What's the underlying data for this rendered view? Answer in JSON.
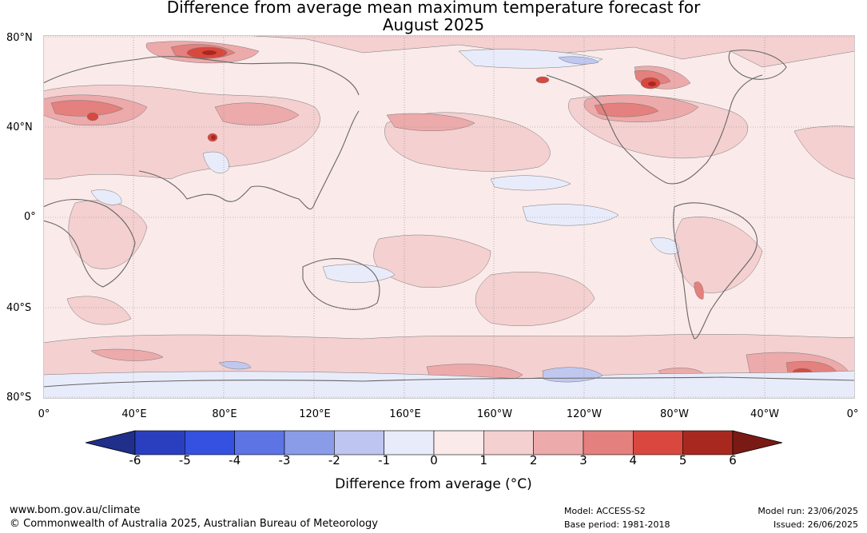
{
  "title": {
    "line1": "Difference from average mean maximum temperature forecast for",
    "line2": "August 2025"
  },
  "map": {
    "lat_labels": [
      "80°N",
      "40°N",
      "0°",
      "40°S",
      "80°S"
    ],
    "lon_labels": [
      "0°",
      "40°E",
      "80°E",
      "120°E",
      "160°E",
      "160°W",
      "120°W",
      "80°W",
      "40°W",
      "0°"
    ],
    "colors": {
      "ocean_base": "#fbeaea",
      "anomaly_0_1": "#fbeaea",
      "anomaly_1_2": "#f4d0d0",
      "anomaly_2_3": "#edaaaa",
      "anomaly_3_4": "#e4807d",
      "anomaly_4_5": "#d9483f",
      "anomaly_5_6": "#a8281f",
      "anomaly_neg1_0": "#e8ecfa",
      "anomaly_neg2_neg1": "#c0c8f0",
      "coastline": "#666666",
      "gridline": "#888888"
    }
  },
  "colorbar": {
    "ticks": [
      "-6",
      "-5",
      "-4",
      "-3",
      "-2",
      "-1",
      "0",
      "1",
      "2",
      "3",
      "4",
      "5",
      "6"
    ],
    "colors": [
      "#1f2f8a",
      "#2a3fc0",
      "#3451e0",
      "#5c74e4",
      "#8a9be8",
      "#bec6f0",
      "#e8ecfa",
      "#fbeaea",
      "#f4d0d0",
      "#edaaaa",
      "#e4807d",
      "#d9483f",
      "#a8281f",
      "#7a1a14"
    ],
    "label": "Difference from average (°C)"
  },
  "footer": {
    "url": "www.bom.gov.au/climate",
    "copyright": "© Commonwealth of Australia 2025, Australian Bureau of Meteorology",
    "model": "Model: ACCESS-S2",
    "base_period": "Base period: 1981-2018",
    "model_run": "Model run: 23/06/2025",
    "issued": "Issued: 26/06/2025"
  }
}
